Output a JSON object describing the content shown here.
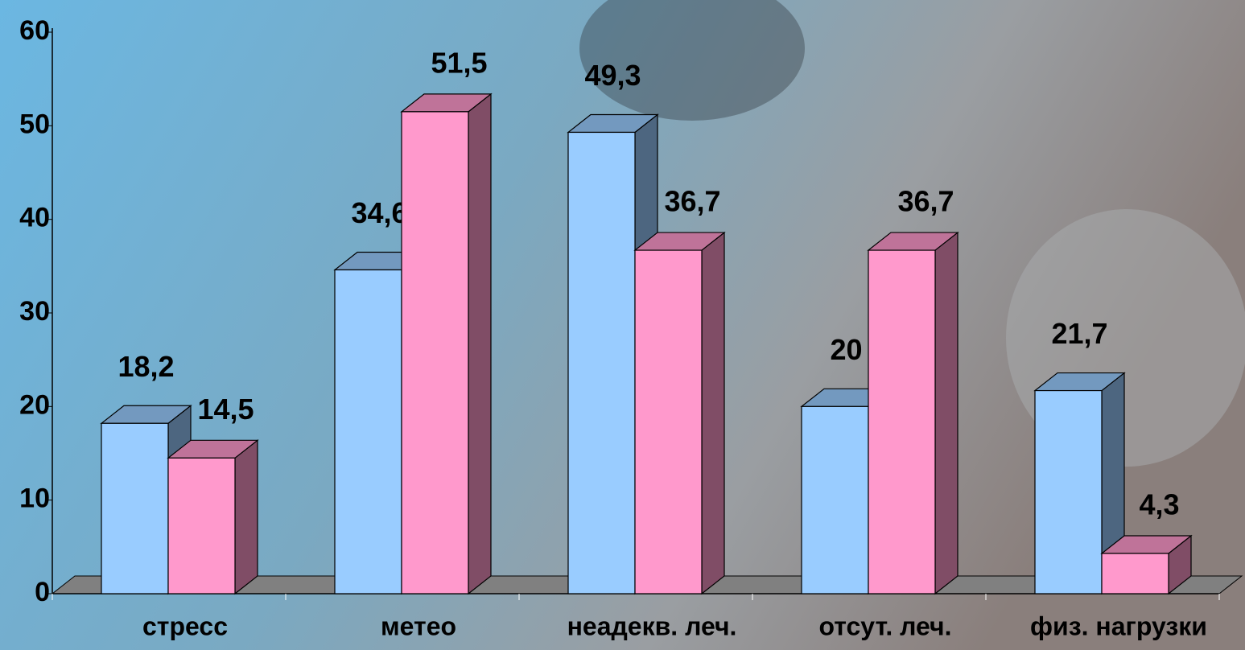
{
  "chart_data": {
    "type": "bar3d",
    "categories": [
      "стресс",
      "метео",
      "неадекв. леч.",
      "отсут. леч.",
      "физ. нагрузки"
    ],
    "series": [
      {
        "color": "#99ccff",
        "values": [
          18.2,
          34.6,
          49.3,
          20,
          21.7
        ],
        "value_labels": [
          "18,2",
          "34,6",
          "49,3",
          "20",
          "21,7"
        ]
      },
      {
        "color": "#ff99cc",
        "values": [
          14.5,
          51.5,
          36.7,
          36.7,
          4.3
        ],
        "value_labels": [
          "14,5",
          "51,5",
          "36,7",
          "36,7",
          "4,3"
        ]
      }
    ],
    "ylim": [
      0,
      60
    ],
    "yticks": [
      0,
      10,
      20,
      30,
      40,
      50,
      60
    ],
    "grid": false
  }
}
